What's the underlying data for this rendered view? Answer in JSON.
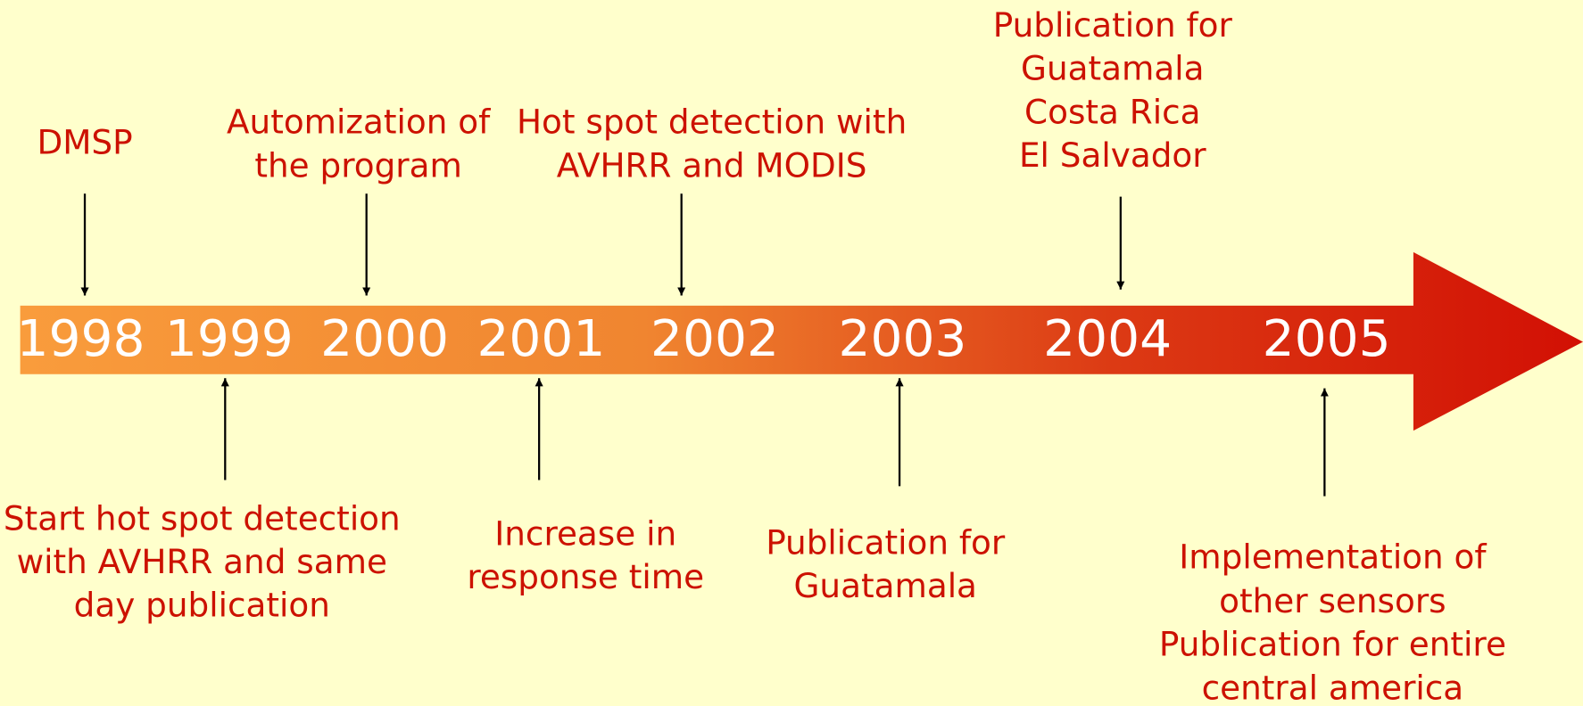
{
  "years": [
    "1998",
    "1999",
    "2000",
    "2001",
    "2002",
    "2003",
    "2004",
    "2005"
  ],
  "events_above": [
    {
      "lines": [
        "DMSP"
      ]
    },
    {
      "lines": [
        "Automization of",
        "the program"
      ]
    },
    {
      "lines": [
        "Hot spot detection with",
        "AVHRR and MODIS"
      ]
    },
    {
      "lines": [
        "Publication for",
        "Guatamala",
        "Costa Rica",
        "El Salvador"
      ]
    }
  ],
  "events_below": [
    {
      "lines": [
        "Start hot spot detection",
        "with AVHRR and same",
        "day publication"
      ]
    },
    {
      "lines": [
        "Increase in",
        "response time"
      ]
    },
    {
      "lines": [
        "Publication for",
        "Guatamala"
      ]
    },
    {
      "lines": [
        "Implementation of",
        "other sensors",
        "Publication for entire",
        "central america"
      ]
    }
  ]
}
